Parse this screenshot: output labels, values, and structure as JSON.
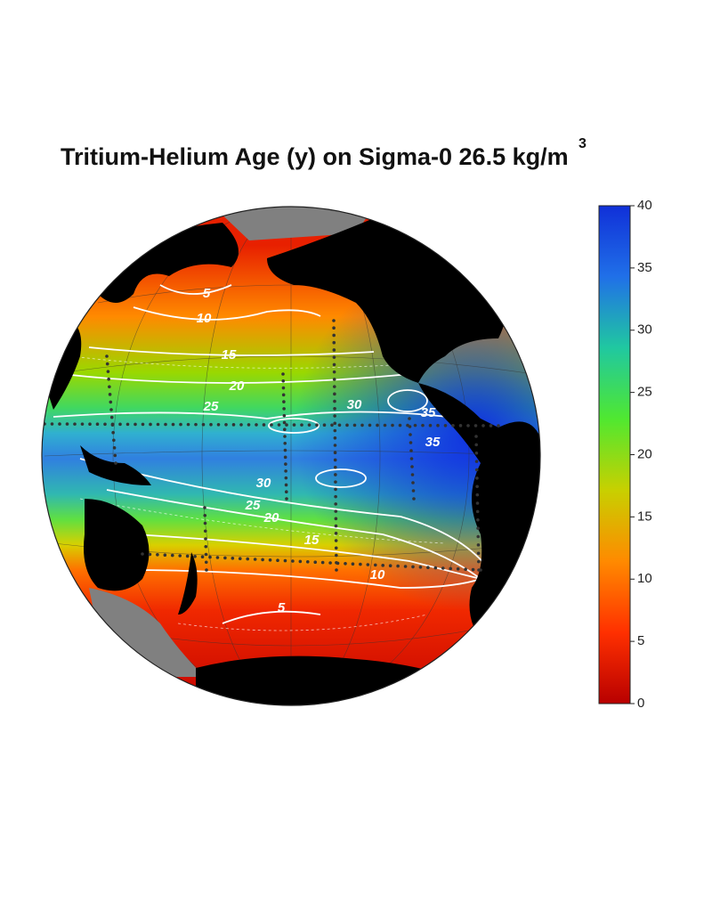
{
  "title": "Tritium-Helium Age (y) on Sigma-0 26.5 kg/m",
  "title_superscript": "3",
  "colorbar": {
    "range": [
      0,
      40
    ],
    "ticks": [
      0,
      5,
      10,
      15,
      20,
      25,
      30,
      35,
      40
    ],
    "colormap": [
      "#b80000",
      "#ff3000",
      "#ff8a00",
      "#c8d000",
      "#50e830",
      "#20c8a0",
      "#2070e8",
      "#1030d8"
    ]
  },
  "contour_labels": [
    5,
    10,
    15,
    20,
    25,
    30,
    35,
    35,
    30,
    25,
    20,
    15,
    10,
    5
  ]
}
